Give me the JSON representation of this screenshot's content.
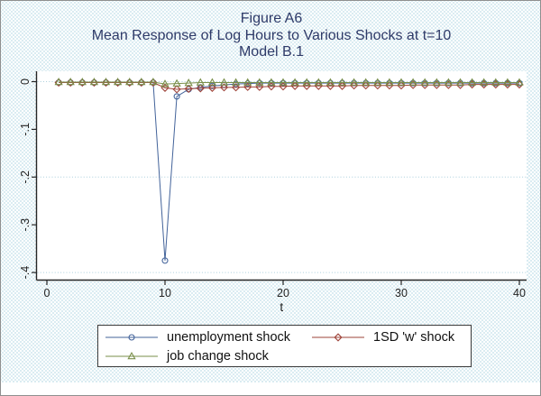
{
  "figure": {
    "title_line1": "Figure A6",
    "title_line2": "Mean Response of Log Hours to Various Shocks at t=10",
    "title_line3": "Model B.1"
  },
  "colors": {
    "background_dot": "#c3dfe9",
    "title_text": "#2e3a68",
    "axis": "#262626",
    "tick_label": "#222222",
    "gridline": "#a9cedb",
    "plot_background": "#ffffff",
    "series_blue": "#43639a",
    "series_red": "#9e4339",
    "series_green": "#7a8f4a"
  },
  "chart_data": {
    "type": "line",
    "title": "Figure A6 — Mean Response of Log Hours to Various Shocks at t=10 — Model B.1",
    "xlabel": "t",
    "ylabel": "",
    "xlim": [
      0,
      41
    ],
    "ylim": [
      -0.42,
      0.02
    ],
    "x_ticks": [
      0,
      10,
      20,
      30,
      40
    ],
    "y_ticks": [
      0,
      -0.1,
      -0.2,
      -0.3,
      -0.4
    ],
    "y_tick_labels": [
      "0",
      "-.1",
      "-.2",
      "-.3",
      "-.4"
    ],
    "grid_y_values": [
      0,
      -0.2,
      -0.4
    ],
    "grid": "horizontal-dotted",
    "legend_position": "bottom",
    "x": [
      1,
      2,
      3,
      4,
      5,
      6,
      7,
      8,
      9,
      10,
      11,
      12,
      13,
      14,
      15,
      16,
      17,
      18,
      19,
      20,
      21,
      22,
      23,
      24,
      25,
      26,
      27,
      28,
      29,
      30,
      31,
      32,
      33,
      34,
      35,
      36,
      37,
      38,
      39,
      40
    ],
    "series": [
      {
        "name": "unemployment shock",
        "marker": "circle",
        "color": "#43639a",
        "values": [
          -0.002,
          -0.002,
          -0.002,
          -0.002,
          -0.002,
          -0.002,
          -0.002,
          -0.002,
          -0.002,
          -0.375,
          -0.031,
          -0.016,
          -0.012,
          -0.009,
          -0.007,
          -0.005,
          -0.004,
          -0.003,
          -0.003,
          -0.003,
          -0.003,
          -0.003,
          -0.003,
          -0.003,
          -0.003,
          -0.003,
          -0.003,
          -0.003,
          -0.003,
          -0.003,
          -0.003,
          -0.003,
          -0.003,
          -0.003,
          -0.003,
          -0.003,
          -0.003,
          -0.003,
          -0.003,
          -0.003
        ]
      },
      {
        "name": "1SD 'w' shock",
        "marker": "diamond",
        "color": "#9e4339",
        "values": [
          -0.002,
          -0.002,
          -0.002,
          -0.002,
          -0.002,
          -0.002,
          -0.002,
          -0.002,
          -0.002,
          -0.013,
          -0.016,
          -0.015,
          -0.014,
          -0.013,
          -0.012,
          -0.012,
          -0.011,
          -0.011,
          -0.01,
          -0.01,
          -0.009,
          -0.009,
          -0.009,
          -0.009,
          -0.009,
          -0.008,
          -0.008,
          -0.008,
          -0.008,
          -0.008,
          -0.007,
          -0.007,
          -0.007,
          -0.007,
          -0.007,
          -0.006,
          -0.006,
          -0.006,
          -0.006,
          -0.006
        ]
      },
      {
        "name": "job change shock",
        "marker": "triangle",
        "color": "#7a8f4a",
        "values": [
          -0.001,
          -0.001,
          -0.001,
          -0.001,
          -0.001,
          -0.001,
          -0.001,
          -0.001,
          -0.001,
          -0.005,
          -0.004,
          -0.003,
          -0.002,
          -0.002,
          -0.002,
          -0.002,
          -0.002,
          -0.002,
          -0.002,
          -0.002,
          -0.002,
          -0.002,
          -0.002,
          -0.002,
          -0.002,
          -0.002,
          -0.002,
          -0.002,
          -0.002,
          -0.002,
          -0.002,
          -0.002,
          -0.002,
          -0.002,
          -0.002,
          -0.002,
          -0.002,
          -0.002,
          -0.002,
          -0.002
        ]
      }
    ]
  }
}
